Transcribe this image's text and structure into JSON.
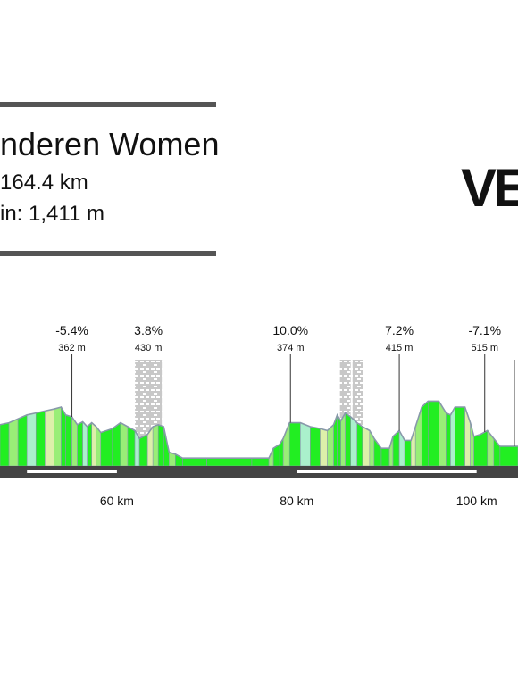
{
  "header": {
    "title": "nderen Women",
    "distance": "164.4 km",
    "gain": "in: 1,411 m",
    "logo": "VE"
  },
  "chart_data": {
    "type": "area",
    "title": "nderen Women",
    "xlabel": "",
    "ylabel": "",
    "x_ticks": [
      {
        "km": 60,
        "label": "60 km"
      },
      {
        "km": 80,
        "label": "80 km"
      },
      {
        "km": 100,
        "label": "100 km"
      }
    ],
    "xlim": [
      47,
      104.6
    ],
    "profile": [
      [
        47.0,
        42
      ],
      [
        48.0,
        44
      ],
      [
        49.0,
        48
      ],
      [
        50.0,
        52
      ],
      [
        51.0,
        54
      ],
      [
        52.0,
        56
      ],
      [
        53.0,
        58
      ],
      [
        53.8,
        60
      ],
      [
        54.3,
        52
      ],
      [
        55.0,
        50
      ],
      [
        55.6,
        42
      ],
      [
        56.2,
        45
      ],
      [
        56.7,
        40
      ],
      [
        57.2,
        44
      ],
      [
        57.7,
        40
      ],
      [
        58.2,
        34
      ],
      [
        59.5,
        38
      ],
      [
        60.4,
        44
      ],
      [
        61.2,
        40
      ],
      [
        62.0,
        36
      ],
      [
        62.5,
        28
      ],
      [
        63.4,
        32
      ],
      [
        64.0,
        40
      ],
      [
        64.6,
        42
      ],
      [
        65.2,
        40
      ],
      [
        65.8,
        14
      ],
      [
        66.5,
        12
      ],
      [
        67.3,
        8
      ],
      [
        70.0,
        8
      ],
      [
        75.0,
        8
      ],
      [
        76.9,
        8
      ],
      [
        77.4,
        18
      ],
      [
        78.1,
        22
      ],
      [
        78.5,
        28
      ],
      [
        79.2,
        44
      ],
      [
        80.4,
        44
      ],
      [
        81.5,
        40
      ],
      [
        82.6,
        38
      ],
      [
        83.4,
        36
      ],
      [
        84.1,
        42
      ],
      [
        84.5,
        52
      ],
      [
        84.9,
        46
      ],
      [
        85.4,
        54
      ],
      [
        86.0,
        50
      ],
      [
        86.7,
        44
      ],
      [
        87.3,
        40
      ],
      [
        88.1,
        36
      ],
      [
        88.6,
        28
      ],
      [
        89.4,
        18
      ],
      [
        90.3,
        18
      ],
      [
        90.7,
        30
      ],
      [
        91.4,
        36
      ],
      [
        92.0,
        26
      ],
      [
        92.7,
        26
      ],
      [
        93.2,
        40
      ],
      [
        93.9,
        60
      ],
      [
        94.6,
        66
      ],
      [
        95.8,
        66
      ],
      [
        96.6,
        54
      ],
      [
        97.1,
        52
      ],
      [
        97.6,
        60
      ],
      [
        98.7,
        60
      ],
      [
        99.3,
        44
      ],
      [
        99.7,
        30
      ],
      [
        100.4,
        32
      ],
      [
        101.2,
        36
      ],
      [
        101.9,
        28
      ],
      [
        102.6,
        20
      ],
      [
        104.6,
        20
      ]
    ],
    "climbs": [
      {
        "km": 55.0,
        "gradient": "-5.4%",
        "elevation": "362 m",
        "cobbled": false
      },
      {
        "km": 63.5,
        "gradient": "3.8%",
        "elevation": "430 m",
        "cobbled": true
      },
      {
        "km": 79.3,
        "gradient": "10.0%",
        "elevation": "374 m",
        "cobbled": false
      },
      {
        "km": 85.4,
        "gradient": "",
        "elevation": "",
        "cobbled": true
      },
      {
        "km": 86.8,
        "gradient": "",
        "elevation": "",
        "cobbled": true
      },
      {
        "km": 91.4,
        "gradient": "7.2%",
        "elevation": "415 m",
        "cobbled": false
      },
      {
        "km": 100.9,
        "gradient": "-7.1%",
        "elevation": "515 m",
        "cobbled": false
      },
      {
        "km": 104.2,
        "gradient": "",
        "elevation": "",
        "cobbled": false
      }
    ],
    "colors": {
      "steep": "#22ee22",
      "medium": "#99ee77",
      "mint": "#aaf0cc",
      "pale": "#ddf0aa",
      "outline": "#8899aa",
      "road": "#444444",
      "cobbles": "#c8c8c8"
    }
  }
}
